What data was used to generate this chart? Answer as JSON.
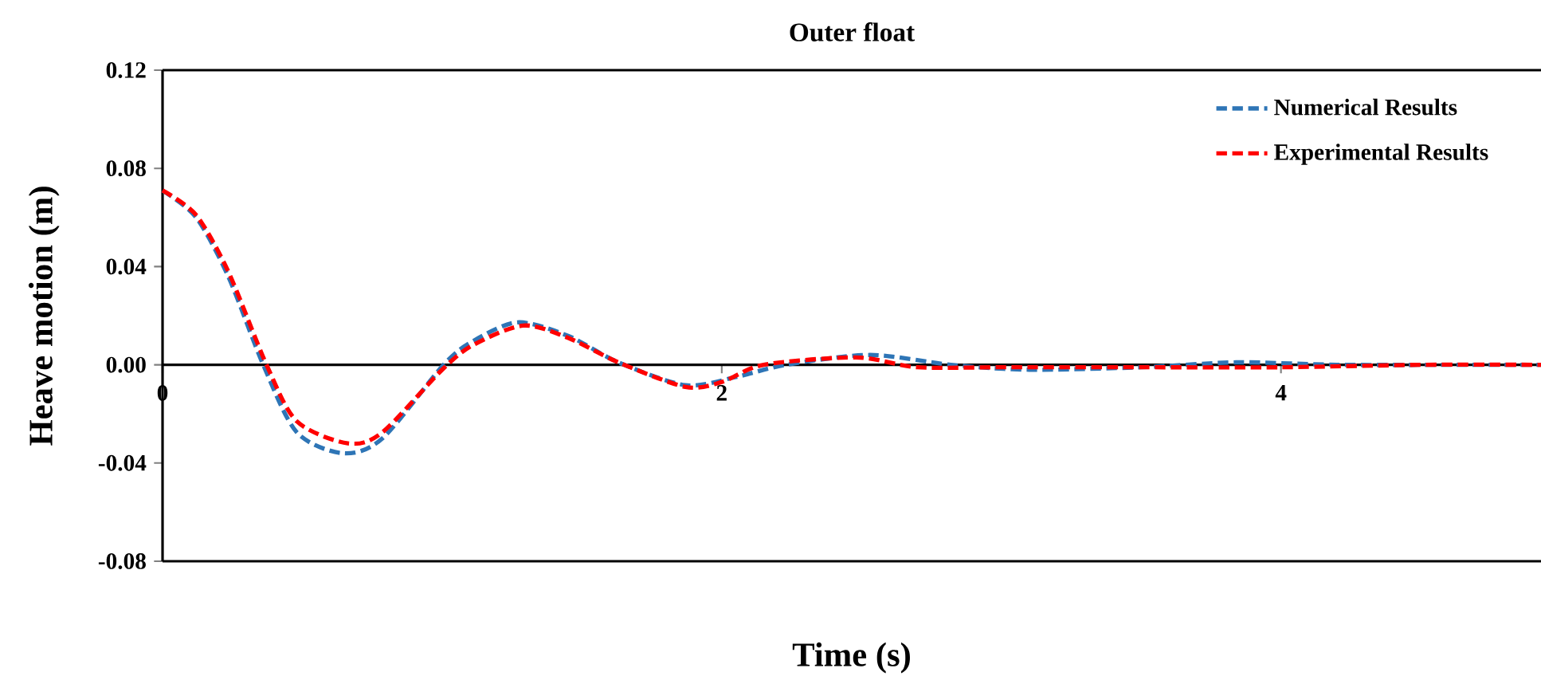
{
  "chart_data": {
    "type": "line",
    "title": "Outer float",
    "xlabel": "Time (s)",
    "ylabel": "Heave motion (m)",
    "xlim": [
      0,
      4.93
    ],
    "xticks": [
      0,
      2,
      4
    ],
    "ylim": [
      -0.08,
      0.12
    ],
    "yticks": [
      -0.08,
      -0.04,
      {
        "value": 0,
        "label": "0.00"
      },
      0.04,
      {
        "value": 0.08,
        "label": "0.08"
      },
      0.12
    ],
    "grid": false,
    "legend": "top right",
    "line_style": "dashed",
    "marker": "none",
    "series": [
      {
        "name": "Numerical Results",
        "color": "#2e75b6",
        "x": [
          0,
          0.12,
          0.235,
          0.36,
          0.48,
          0.645,
          0.786,
          1.005,
          1.11,
          1.27,
          1.45,
          1.63,
          1.87,
          2.05,
          2.23,
          2.53,
          2.82,
          3.1,
          3.5,
          3.84,
          4.2,
          4.6,
          4.93
        ],
        "values": [
          0.071,
          0.06,
          0.036,
          0,
          -0.0275,
          -0.036,
          -0.03,
          0,
          0.0096,
          0.0173,
          0.0118,
          0.001,
          -0.0083,
          -0.005,
          0,
          0.004,
          0,
          -0.002,
          -0.001,
          0.001,
          0,
          0,
          0
        ]
      },
      {
        "name": "Experimental Results",
        "color": "#ff0000",
        "x": [
          0,
          0.12,
          0.235,
          0.372,
          0.48,
          0.663,
          0.786,
          1.0,
          1.11,
          1.29,
          1.45,
          1.63,
          1.87,
          2.0,
          2.15,
          2.48,
          2.7,
          3.0,
          3.5,
          4.0,
          4.5,
          4.93
        ],
        "values": [
          0.071,
          0.061,
          0.038,
          0,
          -0.023,
          -0.032,
          -0.0275,
          -0.002,
          0.008,
          0.016,
          0.011,
          0.001,
          -0.009,
          -0.007,
          0,
          0.003,
          -0.001,
          -0.001,
          -0.001,
          -0.001,
          0,
          0
        ]
      }
    ]
  }
}
